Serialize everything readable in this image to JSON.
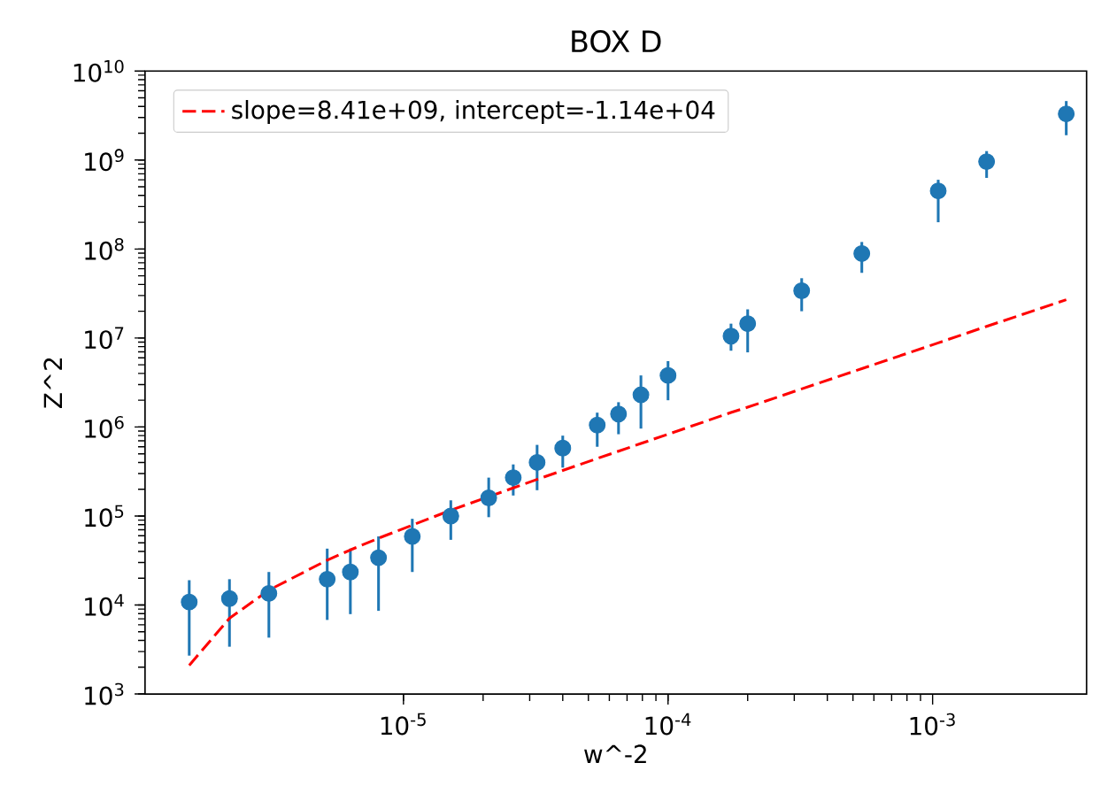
{
  "chart_data": {
    "type": "scatter",
    "title": "BOX D",
    "xlabel": "w^-2",
    "ylabel": "Z^2",
    "log": "xy",
    "grid": false,
    "legend": "top left",
    "xlim": [
      1.055e-06,
      0.00382
    ],
    "ylim": [
      1000,
      10000000000.0
    ],
    "xticks": [
      {
        "value": 1e-05,
        "label": "10$^{-5}$"
      },
      {
        "value": 0.0001,
        "label": "10$^{-4}$"
      },
      {
        "value": 0.001,
        "label": "10$^{-3}$"
      }
    ],
    "yticks": [
      {
        "value": 1000.0,
        "label": "10$^{3}$"
      },
      {
        "value": 10000.0,
        "label": "10$^{4}$"
      },
      {
        "value": 100000.0,
        "label": "10$^{5}$"
      },
      {
        "value": 1000000.0,
        "label": "10$^{6}$"
      },
      {
        "value": 10000000.0,
        "label": "10$^{7}$"
      },
      {
        "value": 100000000.0,
        "label": "10$^{8}$"
      },
      {
        "value": 1000000000.0,
        "label": "10$^{9}$"
      },
      {
        "value": 10000000000.0,
        "label": "10$^{10}$"
      }
    ],
    "x": [
      1.55e-06,
      2.2e-06,
      3.1e-06,
      5.15e-06,
      6.3e-06,
      8.05e-06,
      1.08e-05,
      1.51e-05,
      2.1e-05,
      2.6e-05,
      3.2e-05,
      4e-05,
      5.4e-05,
      6.5e-05,
      7.9e-05,
      0.0001,
      0.000173,
      0.0002,
      0.00032,
      0.00054,
      0.00105,
      0.0016,
      0.0032
    ],
    "series": [
      {
        "color": "#1f77b4",
        "marker": "circle",
        "values": [
          10800.0,
          11800.0,
          13500.0,
          19500.0,
          23500.0,
          34000.0,
          59000.0,
          100000.0,
          160000.0,
          270000.0,
          400000.0,
          580000.0,
          1050000.0,
          1400000.0,
          2300000.0,
          3800000.0,
          10500000.0,
          14500000.0,
          34000000.0,
          89000000.0,
          450000000.0,
          960000000.0,
          3300000000.0
        ],
        "errors": [
          [
            2700.0,
            19000.0
          ],
          [
            3400.0,
            19500.0
          ],
          [
            4300.0,
            23500.0
          ],
          [
            6800.0,
            43000.0
          ],
          [
            7900.0,
            43000.0
          ],
          [
            8600.0,
            59000.0
          ],
          [
            23500.0,
            93000.0
          ],
          [
            54000.0,
            150000.0
          ],
          [
            97000.0,
            270000.0
          ],
          [
            170000.0,
            380000.0
          ],
          [
            195000.0,
            630000.0
          ],
          [
            350000.0,
            800000.0
          ],
          [
            600000.0,
            1450000.0
          ],
          [
            830000.0,
            1900000.0
          ],
          [
            960000.0,
            3800000.0
          ],
          [
            2000000.0,
            5500000.0
          ],
          [
            7200000.0,
            14500000.0
          ],
          [
            6900000.0,
            21000000.0
          ],
          [
            20000000.0,
            47000000.0
          ],
          [
            54000000.0,
            120000000.0
          ],
          [
            200000000.0,
            600000000.0
          ],
          [
            630000000.0,
            1260000000.0
          ],
          [
            1900000000.0,
            4600000000.0
          ]
        ]
      },
      {
        "type": "line",
        "name": "slope=8.41e+09, intercept=-1.14e+04",
        "color": "#ff0000",
        "line_style": "dashed",
        "marker": "none",
        "values": [
          2100.0,
          7100.0,
          14700.0,
          31900.0,
          41600.0,
          56300.0,
          79000.0,
          116000.0,
          165000.0,
          207000.0,
          258000.0,
          325000.0,
          443000.0,
          535000.0,
          653000.0,
          830000.0,
          1455000.0,
          1670000.0,
          2680000.0,
          4530000.0,
          8820000.0,
          13500000.0,
          26900000.0
        ]
      }
    ]
  }
}
